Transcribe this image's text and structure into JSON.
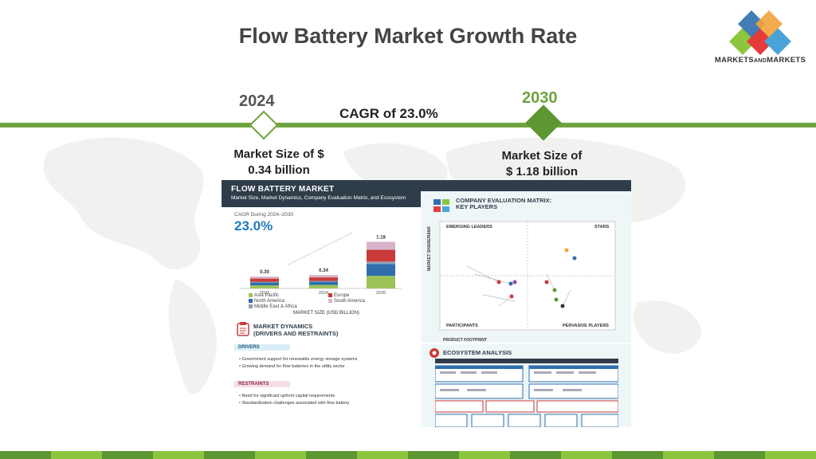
{
  "slide": {
    "title": "Flow Battery Market Growth Rate",
    "logo_text": "MARKETSANDMARKETS",
    "logo_text_parts": [
      "MARKETS",
      "AND",
      "MARKETS"
    ]
  },
  "timeline": {
    "start_year": "2024",
    "end_year": "2030",
    "cagr_label": "CAGR of 23.0%",
    "start_size_line1": "Market Size of $",
    "start_size_line2": "0.34 billion",
    "end_size_line1": "Market Size of",
    "end_size_line2": "$ 1.18 billion"
  },
  "infographic": {
    "header_title": "FLOW BATTERY MARKET",
    "header_subtitle": "Market Size, Market Dynamics, Company Evaluation Matrix, and Ecosystem",
    "cagr_small": "CAGR During 2024–2030",
    "cagr_big": "23.0%",
    "market_size_label": "MARKET SIZE (USD BILLION)",
    "matrix_title_1": "COMPANY EVALUATION MATRIX:",
    "matrix_title_2": "KEY PLAYERS",
    "matrix_emerging": "EMERGING LEADERS",
    "matrix_stars": "STARS",
    "matrix_participants": "PARTICIPANTS",
    "matrix_pervasive": "PERVASIVE PLAYERS",
    "matrix_y_axis": "MARKET SHARE/RANK",
    "matrix_x_axis": "PRODUCT FOOTPRINT",
    "dynamics_title_1": "MARKET DYNAMICS",
    "dynamics_title_2": "(DRIVERS AND RESTRAINTS)",
    "drivers_label": "DRIVERS",
    "drivers": [
      "Government support for renewable energy storage systems",
      "Growing demand for flow batteries in the utility sector"
    ],
    "restraints_label": "RESTRAINTS",
    "restraints": [
      "Need for significant upfront capital requirements",
      "Standardization challenges associated with flow battery"
    ],
    "ecosystem_title": "ECOSYSTEM ANALYSIS"
  },
  "chart_data": {
    "type": "bar",
    "stacked": true,
    "categories": [
      "2023",
      "2024",
      "2030"
    ],
    "totals": [
      0.3,
      0.34,
      1.18
    ],
    "series": [
      {
        "name": "Asia Pacific",
        "color": "#9bc35a",
        "values": [
          0.08,
          0.09,
          0.32
        ]
      },
      {
        "name": "North America",
        "color": "#2f6fae",
        "values": [
          0.07,
          0.08,
          0.3
        ]
      },
      {
        "name": "Middle East & Africa",
        "color": "#8fa1b3",
        "values": [
          0.02,
          0.02,
          0.06
        ]
      },
      {
        "name": "Europe",
        "color": "#c93a3a",
        "values": [
          0.08,
          0.09,
          0.3
        ]
      },
      {
        "name": "South America",
        "color": "#d9b3c9",
        "values": [
          0.05,
          0.06,
          0.2
        ]
      }
    ],
    "xlabel": "MARKET SIZE (USD BILLION)",
    "ylim": [
      0,
      1.25
    ],
    "legend": "bottom"
  },
  "colors": {
    "accent_green": "#6ea33f",
    "dark_green": "#5c9732",
    "title_gray": "#444444",
    "infographic_navy": "#2f3d4a",
    "bottom_stripe_light": "#8cc63f",
    "bottom_stripe_dark": "#5c9732"
  }
}
